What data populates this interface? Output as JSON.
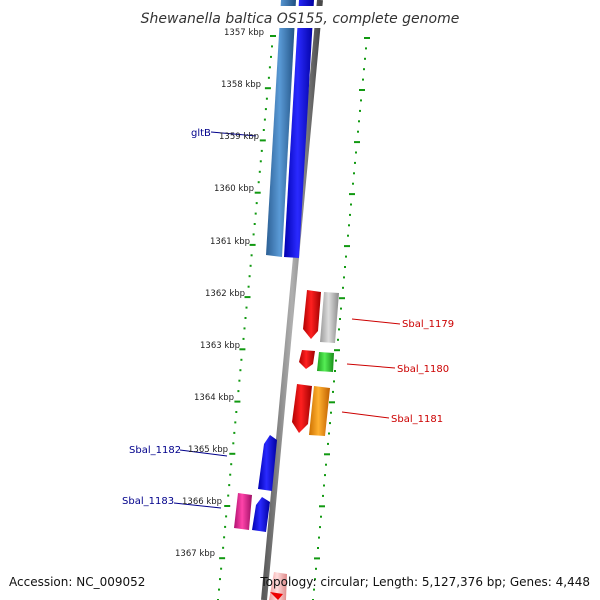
{
  "title": "Shewanella baltica OS155, complete genome",
  "footer": {
    "accession": "Accession: NC_009052",
    "summary": "Topology: circular; Length: 5,127,376 bp; Genes: 4,448"
  },
  "scale_labels": [
    "1357 kbp",
    "1358 kbp",
    "1359 kbp",
    "1360 kbp",
    "1361 kbp",
    "1362 kbp",
    "1363 kbp",
    "1364 kbp",
    "1365 kbp",
    "1366 kbp",
    "1367 kbp"
  ],
  "gene_labels": [
    {
      "label": "gltB",
      "color": "#00008b"
    },
    {
      "label": "Sbal_1179",
      "color": "#cc0000"
    },
    {
      "label": "Sbal_1180",
      "color": "#cc0000"
    },
    {
      "label": "Sbal_1181",
      "color": "#cc0000"
    },
    {
      "label": "Sbal_1182",
      "color": "#00008b"
    },
    {
      "label": "Sbal_1183",
      "color": "#00008b"
    }
  ],
  "colors": {
    "backbone": "#808080",
    "tick_dots": "#119911",
    "blue_gene": "#0000ee",
    "steelblue_gene": "#3a78b8",
    "red_gene": "#ee0000",
    "grey_gene": "#b8b8b8",
    "green_gene": "#33cc33",
    "orange_gene": "#ff9900",
    "magenta_gene": "#ee2299",
    "pink_gene": "#ffbbbb"
  }
}
